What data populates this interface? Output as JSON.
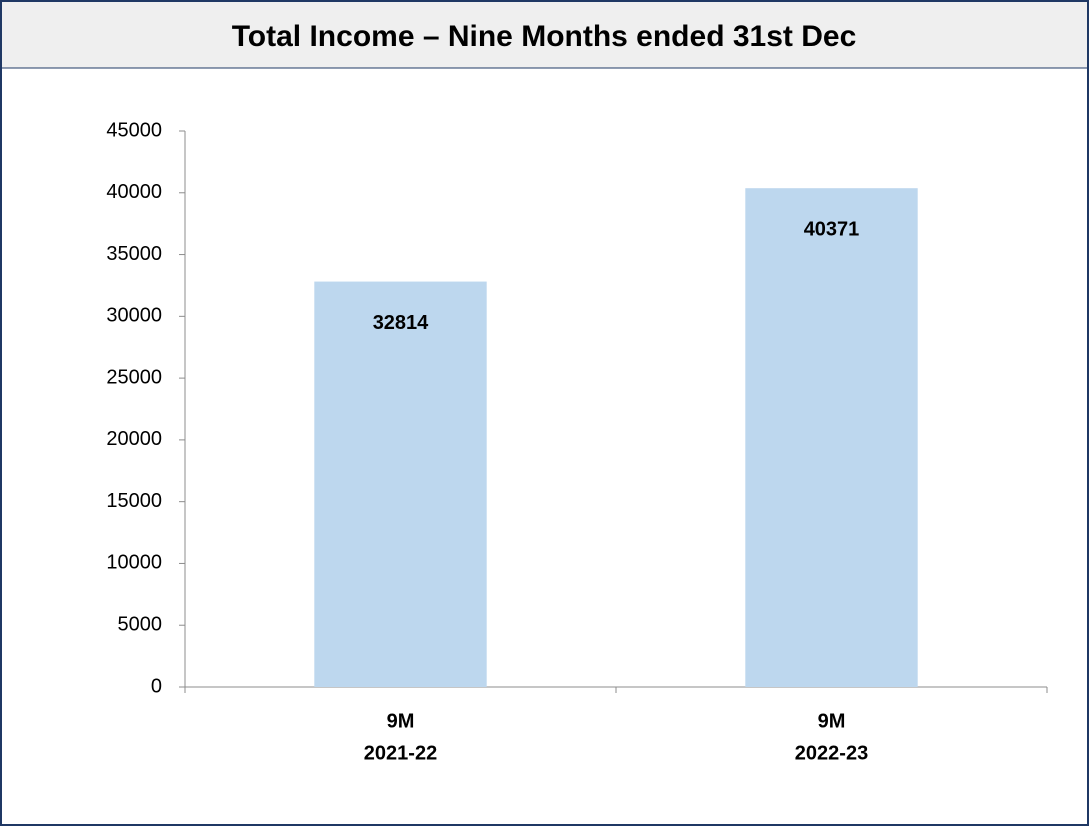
{
  "chart_data": {
    "type": "bar",
    "title": "Total Income – Nine Months ended 31st Dec",
    "categories": [
      [
        "9M",
        "2021-22"
      ],
      [
        "9M",
        "2022-23"
      ]
    ],
    "values": [
      32814,
      40371
    ],
    "color": "#bdd7ee",
    "ylim": [
      0,
      45000
    ],
    "yticks": [
      0,
      5000,
      10000,
      15000,
      20000,
      25000,
      30000,
      35000,
      40000,
      45000
    ],
    "grid": false
  }
}
